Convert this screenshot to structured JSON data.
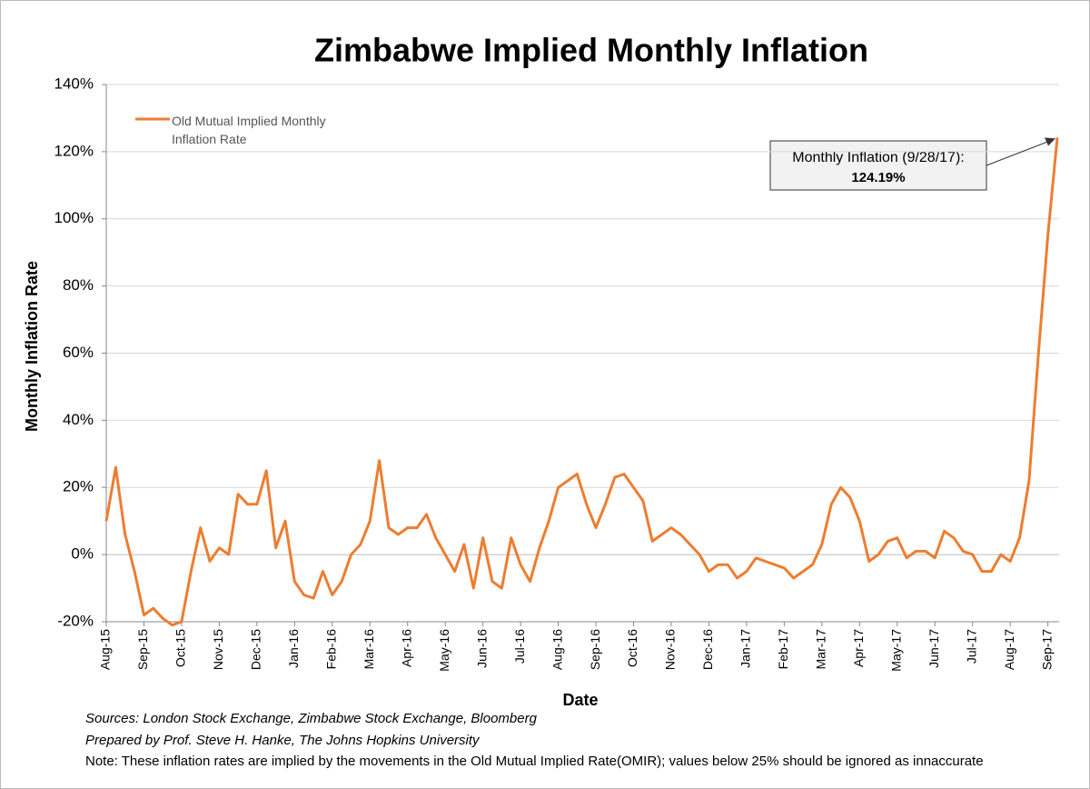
{
  "chart_data": {
    "type": "line",
    "title": "Zimbabwe Implied Monthly Inflation",
    "y_label": "Monthly Inflation Rate",
    "x_label": "Date",
    "categories": [
      "Aug-15",
      null,
      null,
      null,
      "Sep-15",
      null,
      null,
      null,
      "Oct-15",
      null,
      null,
      null,
      "Nov-15",
      null,
      null,
      null,
      "Dec-15",
      null,
      null,
      null,
      "Jan-16",
      null,
      null,
      null,
      "Feb-16",
      null,
      null,
      null,
      "Mar-16",
      null,
      null,
      null,
      "Apr-16",
      null,
      null,
      null,
      "May-16",
      null,
      null,
      null,
      "Jun-16",
      null,
      null,
      null,
      "Jul-16",
      null,
      null,
      null,
      "Aug-16",
      null,
      null,
      null,
      "Sep-16",
      null,
      null,
      null,
      "Oct-16",
      null,
      null,
      null,
      "Nov-16",
      null,
      null,
      null,
      "Dec-16",
      null,
      null,
      null,
      "Jan-17",
      null,
      null,
      null,
      "Feb-17",
      null,
      null,
      null,
      "Mar-17",
      null,
      null,
      null,
      "Apr-17",
      null,
      null,
      null,
      "May-17",
      null,
      null,
      null,
      "Jun-17",
      null,
      null,
      null,
      "Jul-17",
      null,
      null,
      null,
      "Aug-17",
      null,
      null,
      null,
      "Sep-17",
      null
    ],
    "series": [
      {
        "name": "Old Mutual Implied Monthly Inflation Rate",
        "color": "#ed7d31",
        "values": [
          10,
          26,
          6,
          -5,
          -18,
          -16,
          -19,
          -21,
          -20,
          -5,
          8,
          -2,
          2,
          0,
          18,
          15,
          15,
          25,
          2,
          10,
          -8,
          -12,
          -13,
          -5,
          -12,
          -8,
          0,
          3,
          10,
          28,
          8,
          6,
          8,
          8,
          12,
          5,
          0,
          -5,
          3,
          -10,
          5,
          -8,
          -10,
          5,
          -3,
          -8,
          2,
          10,
          20,
          22,
          24,
          15,
          8,
          15,
          23,
          24,
          20,
          16,
          4,
          6,
          8,
          6,
          3,
          0,
          -5,
          -3,
          -3,
          -7,
          -5,
          -1,
          -2,
          -3,
          -4,
          -7,
          -5,
          -3,
          3,
          15,
          20,
          17,
          10,
          -2,
          0,
          4,
          5,
          -1,
          1,
          1,
          -1,
          7,
          5,
          1,
          0,
          -5,
          -5,
          0,
          -2,
          5,
          22,
          60,
          95,
          124.19
        ]
      }
    ],
    "ylim": [
      -20,
      140
    ],
    "yticks": [
      {
        "value": -20,
        "label": "-20%"
      },
      {
        "value": 0,
        "label": "0%"
      },
      {
        "value": 20,
        "label": "20%"
      },
      {
        "value": 40,
        "label": "40%"
      },
      {
        "value": 60,
        "label": "60%"
      },
      {
        "value": 80,
        "label": "80%"
      },
      {
        "value": 100,
        "label": "100%"
      },
      {
        "value": 120,
        "label": "120%"
      },
      {
        "value": 140,
        "label": "140%"
      }
    ],
    "grid": true,
    "legend": "upper left",
    "annotation": {
      "text": "Monthly Inflation (9/28/17):",
      "label": "124.19%"
    },
    "notes": [
      "Sources: London Stock Exchange, Zimbabwe Stock Exchange, Bloomberg",
      "Prepared by Prof. Steve H. Hanke, The Johns Hopkins University",
      "Note: These inflation rates are implied by the movements in the Old Mutual Implied Rate(OMIR); values below 25% should be ignored as innaccurate"
    ]
  }
}
